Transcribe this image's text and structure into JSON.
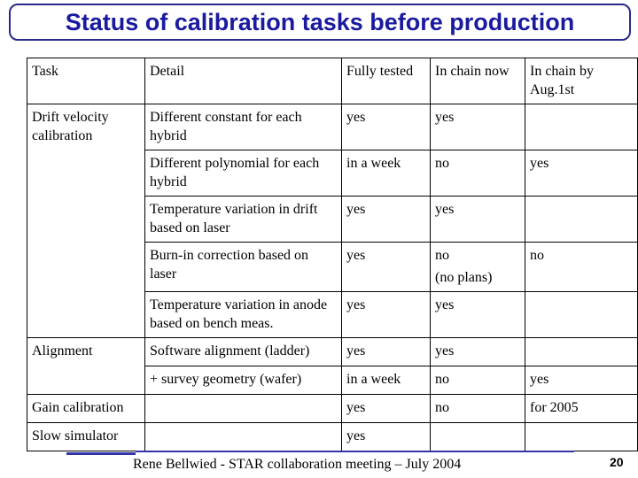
{
  "title": "Status of calibration tasks before production",
  "table": {
    "headers": [
      "Task",
      "Detail",
      "Fully tested",
      "In chain now",
      "In chain by Aug.1st"
    ],
    "rows": [
      {
        "task": "Drift velocity calibration",
        "detail": "Different constant for each hybrid",
        "tested": "yes",
        "now": "yes",
        "aug": ""
      },
      {
        "task": "",
        "detail": "Different polynomial for each hybrid",
        "tested": "in a week",
        "now": "no",
        "aug": "yes"
      },
      {
        "task": "",
        "detail": "Temperature variation in drift based on laser",
        "tested": "yes",
        "now": "yes",
        "aug": ""
      },
      {
        "task": "",
        "detail": "Burn-in correction based on laser",
        "tested": "yes",
        "now": "no",
        "now_note": "(no plans)",
        "aug": "no"
      },
      {
        "task": "",
        "detail": "Temperature variation in anode based on bench meas.",
        "tested": "yes",
        "now": "yes",
        "aug": ""
      },
      {
        "task": "Alignment",
        "detail": "Software alignment (ladder)",
        "tested": "yes",
        "now": "yes",
        "aug": ""
      },
      {
        "task": "",
        "detail": "+ survey geometry (wafer)",
        "tested": "in a week",
        "now": "no",
        "aug": "yes"
      },
      {
        "task": "Gain calibration",
        "detail": "",
        "tested": "yes",
        "now": "no",
        "aug": "for 2005"
      },
      {
        "task": "Slow simulator",
        "detail": "",
        "tested": "yes",
        "now": "",
        "aug": ""
      }
    ]
  },
  "footer": {
    "text": "Rene Bellwied - STAR collaboration meeting – July 2004",
    "page_number": "20"
  }
}
